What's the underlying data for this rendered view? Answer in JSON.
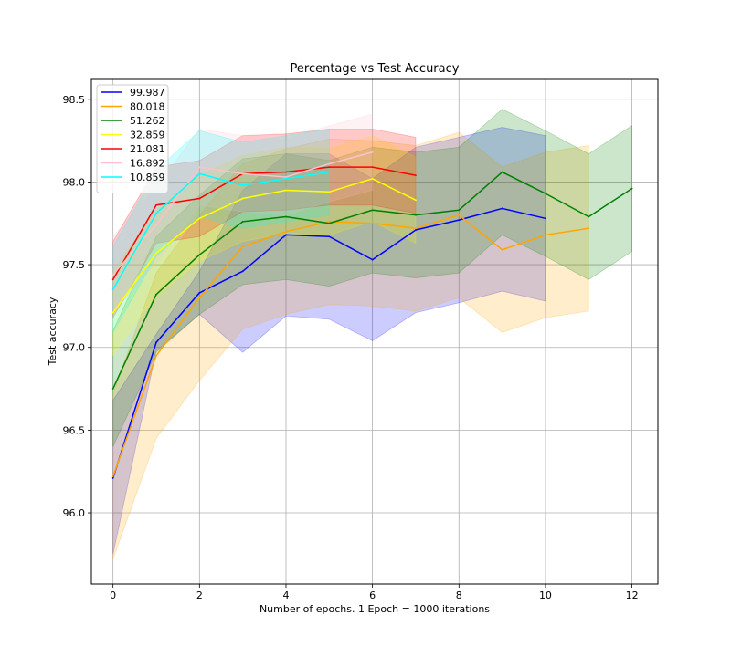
{
  "chart_data": {
    "type": "line",
    "title": "Percentage vs Test Accuracy",
    "xlabel": "Number of epochs. 1 Epoch = 1000 iterations",
    "ylabel": "Test accuracy",
    "xlim": [
      -0.5,
      12.6
    ],
    "ylim": [
      95.57,
      98.62
    ],
    "xticks": [
      0,
      2,
      4,
      6,
      8,
      10,
      12
    ],
    "yticks": [
      96.0,
      96.5,
      97.0,
      97.5,
      98.0,
      98.5
    ],
    "grid": true,
    "legend_position": "top-left",
    "series": [
      {
        "name": "99.987",
        "color": "#0000ff",
        "x": [
          0,
          1,
          2,
          3,
          4,
          5,
          6,
          7,
          8,
          9,
          10
        ],
        "values": [
          96.21,
          97.03,
          97.33,
          97.46,
          97.68,
          97.67,
          97.53,
          97.71,
          97.77,
          97.84,
          97.78
        ],
        "lower": [
          95.75,
          96.98,
          97.2,
          96.97,
          97.19,
          97.17,
          97.04,
          97.21,
          97.27,
          97.34,
          97.28
        ],
        "upper": [
          96.68,
          97.08,
          97.46,
          97.95,
          98.17,
          98.17,
          98.02,
          98.21,
          98.27,
          98.33,
          98.28
        ]
      },
      {
        "name": "80.018",
        "color": "#ffa500",
        "x": [
          0,
          1,
          2,
          3,
          4,
          5,
          6,
          7,
          8,
          9,
          10,
          11
        ],
        "values": [
          96.22,
          96.95,
          97.3,
          97.61,
          97.7,
          97.76,
          97.75,
          97.72,
          97.8,
          97.59,
          97.68,
          97.72
        ],
        "lower": [
          95.72,
          96.45,
          96.8,
          97.11,
          97.2,
          97.26,
          97.25,
          97.22,
          97.3,
          97.09,
          97.18,
          97.22
        ],
        "upper": [
          96.72,
          97.45,
          97.8,
          98.11,
          98.2,
          98.26,
          98.25,
          98.22,
          98.3,
          98.09,
          98.18,
          98.22
        ]
      },
      {
        "name": "51.262",
        "color": "#008000",
        "x": [
          0,
          1,
          2,
          3,
          4,
          5,
          6,
          7,
          8,
          9,
          10,
          11,
          12
        ],
        "values": [
          96.75,
          97.32,
          97.56,
          97.76,
          97.79,
          97.75,
          97.83,
          97.8,
          97.83,
          98.06,
          97.93,
          97.79,
          97.96
        ],
        "lower": [
          96.4,
          96.97,
          97.2,
          97.38,
          97.41,
          97.37,
          97.45,
          97.42,
          97.45,
          97.68,
          97.55,
          97.41,
          97.58
        ],
        "upper": [
          97.1,
          97.67,
          97.92,
          98.14,
          98.17,
          98.13,
          98.21,
          98.18,
          98.21,
          98.44,
          98.31,
          98.17,
          98.34
        ]
      },
      {
        "name": "32.859",
        "color": "#ffff00",
        "x": [
          0,
          1,
          2,
          3,
          4,
          5,
          6,
          7
        ],
        "values": [
          97.21,
          97.57,
          97.78,
          97.9,
          97.95,
          97.94,
          98.02,
          97.89
        ],
        "lower": [
          96.95,
          97.31,
          97.52,
          97.64,
          97.69,
          97.68,
          97.76,
          97.63
        ],
        "upper": [
          97.47,
          97.83,
          98.04,
          98.16,
          98.21,
          98.2,
          98.28,
          98.15
        ]
      },
      {
        "name": "21.081",
        "color": "#ff0000",
        "x": [
          0,
          1,
          2,
          3,
          4,
          5,
          6,
          7
        ],
        "values": [
          97.41,
          97.86,
          97.9,
          98.05,
          98.06,
          98.09,
          98.09,
          98.04
        ],
        "lower": [
          97.18,
          97.63,
          97.67,
          97.82,
          97.83,
          97.86,
          97.86,
          97.81
        ],
        "upper": [
          97.64,
          98.09,
          98.13,
          98.28,
          98.29,
          98.32,
          98.32,
          98.27
        ]
      },
      {
        "name": "16.892",
        "color": "#ffc0cb",
        "x": [
          0,
          1,
          2,
          3,
          4,
          5,
          6
        ],
        "values": [
          97.44,
          97.74,
          98.09,
          98.05,
          98.03,
          98.11,
          98.18
        ],
        "lower": [
          97.21,
          97.51,
          97.86,
          97.82,
          97.8,
          97.88,
          97.95
        ],
        "upper": [
          97.67,
          97.97,
          98.32,
          98.28,
          98.26,
          98.34,
          98.41
        ]
      },
      {
        "name": "10.859",
        "color": "#00ffff",
        "x": [
          0,
          1,
          2,
          3,
          4,
          5
        ],
        "values": [
          97.35,
          97.81,
          98.05,
          97.98,
          98.02,
          98.06
        ],
        "lower": [
          97.09,
          97.55,
          97.79,
          97.72,
          97.76,
          97.8
        ],
        "upper": [
          97.61,
          98.07,
          98.31,
          98.24,
          98.28,
          98.32
        ]
      }
    ]
  }
}
